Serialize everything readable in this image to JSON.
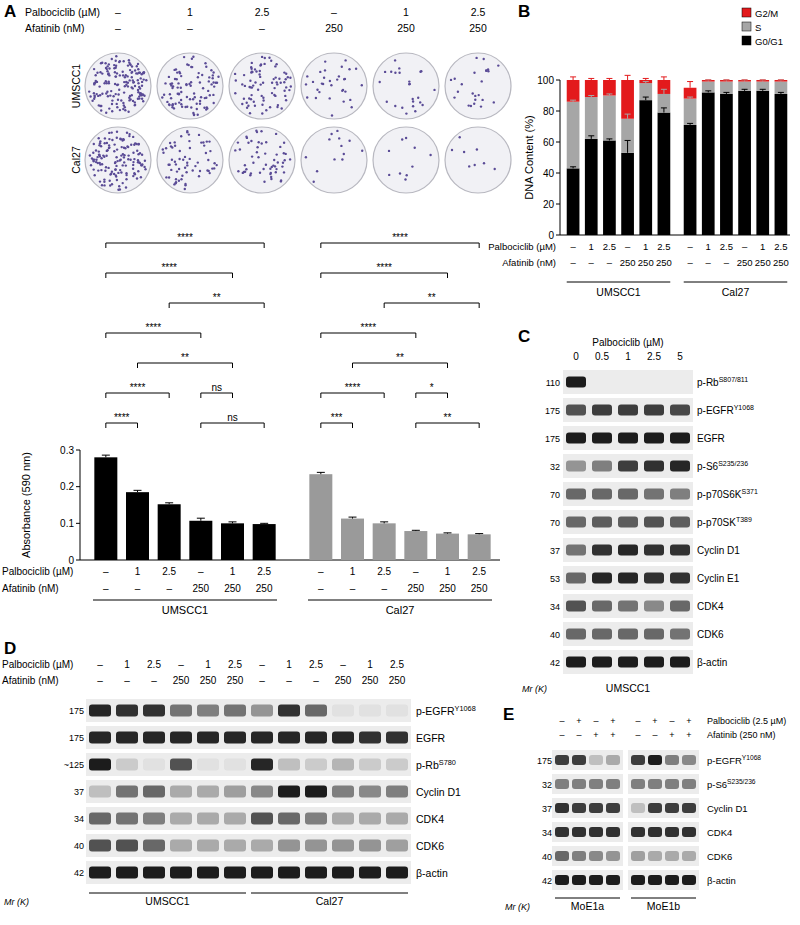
{
  "chart_data": [
    {
      "type": "bar",
      "y_label": "Absorbance (590 nm)",
      "ylim": [
        0,
        0.3
      ],
      "yticks": [
        0,
        0.1,
        0.2,
        0.3
      ],
      "x_rows": [
        {
          "label": "Palbociclib (µM)",
          "values": [
            "–",
            "1",
            "2.5",
            "–",
            "1",
            "2.5"
          ]
        },
        {
          "label": "Afatinib (nM)",
          "values": [
            "–",
            "–",
            "–",
            "250",
            "250",
            "250"
          ]
        }
      ],
      "series": [
        {
          "name": "UMSCC1",
          "color": "#000000",
          "values": [
            0.28,
            0.185,
            0.152,
            0.107,
            0.1,
            0.098
          ],
          "errors": [
            0.006,
            0.005,
            0.004,
            0.007,
            0.004,
            0.002
          ],
          "annotations": [
            {
              "text": "****",
              "from": 0,
              "to": 5
            },
            {
              "text": "****",
              "from": 0,
              "to": 4
            },
            {
              "text": "**",
              "from": 2,
              "to": 5
            },
            {
              "text": "****",
              "from": 0,
              "to": 3
            },
            {
              "text": "**",
              "from": 1,
              "to": 4
            },
            {
              "text": "****",
              "from": 0,
              "to": 2
            },
            {
              "text": "****",
              "from": 0,
              "to": 1
            },
            {
              "text": "ns",
              "from": 3,
              "to": 4
            },
            {
              "text": "ns",
              "from": 3,
              "to": 5
            }
          ]
        },
        {
          "name": "Cal27",
          "color": "#9a9a9a",
          "values": [
            0.234,
            0.113,
            0.1,
            0.079,
            0.072,
            0.07
          ],
          "errors": [
            0.005,
            0.004,
            0.004,
            0.002,
            0.002,
            0.002
          ],
          "annotations": [
            {
              "text": "****",
              "from": 0,
              "to": 5
            },
            {
              "text": "****",
              "from": 0,
              "to": 4
            },
            {
              "text": "**",
              "from": 2,
              "to": 5
            },
            {
              "text": "****",
              "from": 0,
              "to": 3
            },
            {
              "text": "**",
              "from": 1,
              "to": 4
            },
            {
              "text": "****",
              "from": 0,
              "to": 2
            },
            {
              "text": "***",
              "from": 0,
              "to": 1
            },
            {
              "text": "*",
              "from": 3,
              "to": 4
            },
            {
              "text": "**",
              "from": 3,
              "to": 5
            }
          ]
        }
      ]
    },
    {
      "type": "bar",
      "stacked": true,
      "legend": "top-right",
      "y_label": "DNA Content (%)",
      "ylim": [
        0,
        100
      ],
      "yticks": [
        0,
        20,
        40,
        60,
        80,
        100
      ],
      "groups": [
        "UMSCC1",
        "Cal27"
      ],
      "x_rows": [
        {
          "label": "Palbociclib (µM)",
          "values": [
            "–",
            "1",
            "2.5",
            "–",
            "1",
            "2.5"
          ]
        },
        {
          "label": "Afatinib (nM)",
          "values": [
            "–",
            "–",
            "–",
            "250",
            "250",
            "250"
          ]
        }
      ],
      "series": [
        {
          "name": "G0/G1",
          "color": "#000000",
          "values": [
            43,
            62,
            61,
            53,
            87,
            79,
            71,
            92,
            91,
            93,
            93,
            91
          ],
          "errors": [
            1,
            2,
            1,
            8,
            2,
            3,
            1,
            1,
            1,
            1,
            1,
            1
          ]
        },
        {
          "name": "S",
          "color": "#a6a6a6",
          "values": [
            43,
            27,
            29,
            22,
            11,
            12,
            17,
            7,
            8,
            6,
            6,
            8
          ],
          "errors": [
            1,
            1,
            1,
            3,
            1,
            3,
            1,
            1,
            1,
            1,
            1,
            1
          ]
        },
        {
          "name": "G2/M",
          "color": "#e31a1c",
          "values": [
            14,
            11,
            10,
            25,
            2,
            9,
            7,
            1,
            1,
            1,
            1,
            1
          ],
          "errors": [
            2,
            1,
            1,
            3,
            1,
            2,
            4,
            0,
            0,
            0,
            0,
            0
          ]
        }
      ]
    }
  ],
  "panel_labels": [
    "A",
    "B",
    "C",
    "D",
    "E"
  ],
  "colonies": {
    "conditions": [
      {
        "label": "Palbociclib (µM)",
        "values": [
          "–",
          "1",
          "2.5",
          "–",
          "1",
          "2.5"
        ]
      },
      {
        "label": "Afatinib (nM)",
        "values": [
          "–",
          "–",
          "–",
          "250",
          "250",
          "250"
        ]
      }
    ],
    "rows": [
      {
        "name": "UMSCC1",
        "density": [
          1.0,
          0.6,
          0.5,
          0.2,
          0.15,
          0.15
        ]
      },
      {
        "name": "Cal27",
        "density": [
          0.9,
          0.4,
          0.35,
          0.08,
          0.06,
          0.05
        ]
      }
    ]
  },
  "blots": [
    {
      "cell_lines": [
        "UMSCC1"
      ],
      "mr_label": "Mr (K)",
      "conditions": [
        {
          "label": "Palbociclib (µM)",
          "values": [
            "0",
            "0.5",
            "1",
            "2.5",
            "5"
          ]
        }
      ],
      "rows": [
        {
          "mw": "110",
          "label": "p-Rb",
          "sup": "S807/811",
          "bands": [
            [
              0.95,
              0,
              0,
              0,
              0
            ]
          ]
        },
        {
          "mw": "175",
          "label": "p-EGFR",
          "sup": "Y1068",
          "bands": [
            [
              0.7,
              0.8,
              0.8,
              0.8,
              0.75
            ]
          ]
        },
        {
          "mw": "175",
          "label": "EGFR",
          "bands": [
            [
              0.95,
              0.95,
              0.95,
              0.95,
              0.95
            ]
          ]
        },
        {
          "mw": "32",
          "label": "p-S6",
          "sup": "S235/236",
          "bands": [
            [
              0.4,
              0.5,
              0.8,
              0.85,
              0.9
            ]
          ]
        },
        {
          "mw": "70",
          "label": "p-p70S6K",
          "sup": "S371",
          "bands": [
            [
              0.6,
              0.6,
              0.6,
              0.55,
              0.5
            ]
          ]
        },
        {
          "mw": "70",
          "label": "p-p70SK",
          "sup": "T389",
          "bands": [
            [
              0.6,
              0.65,
              0.65,
              0.7,
              0.65
            ]
          ]
        },
        {
          "mw": "37",
          "label": "Cyclin D1",
          "bands": [
            [
              0.55,
              0.85,
              0.9,
              0.85,
              0.85
            ]
          ]
        },
        {
          "mw": "53",
          "label": "Cyclin E1",
          "bands": [
            [
              0.6,
              0.9,
              0.9,
              0.85,
              0.85
            ]
          ]
        },
        {
          "mw": "34",
          "label": "CDK4",
          "bands": [
            [
              0.7,
              0.6,
              0.55,
              0.45,
              0.6
            ]
          ]
        },
        {
          "mw": "40",
          "label": "CDK6",
          "bands": [
            [
              0.6,
              0.6,
              0.6,
              0.6,
              0.55
            ]
          ]
        },
        {
          "mw": "42",
          "label": "β-actin",
          "bands": [
            [
              0.95,
              0.95,
              0.95,
              0.95,
              0.95
            ]
          ]
        }
      ]
    },
    {
      "cell_lines": [
        "UMSCC1",
        "Cal27"
      ],
      "mr_label": "Mr (K)",
      "conditions": [
        {
          "label": "Palbociclib (µM)",
          "values": [
            "–",
            "1",
            "2.5",
            "–",
            "1",
            "2.5"
          ]
        },
        {
          "label": "Afatinib (nM)",
          "values": [
            "–",
            "–",
            "–",
            "250",
            "250",
            "250"
          ]
        }
      ],
      "rows": [
        {
          "mw": "175",
          "label": "p-EGFR",
          "sup": "Y1068",
          "bands": [
            [
              0.9,
              0.85,
              0.85,
              0.55,
              0.5,
              0.55
            ],
            [
              0.4,
              0.85,
              0.6,
              0.05,
              0.05,
              0.05
            ]
          ]
        },
        {
          "mw": "175",
          "label": "EGFR",
          "bands": [
            [
              0.9,
              0.9,
              0.9,
              0.9,
              0.9,
              0.9
            ],
            [
              0.9,
              0.9,
              0.9,
              0.9,
              0.85,
              0.85
            ]
          ]
        },
        {
          "mw": "~125",
          "label": "p-Rb",
          "sup": "S780",
          "bands": [
            [
              0.95,
              0.15,
              0.05,
              0.7,
              0.05,
              0.05
            ],
            [
              0.9,
              0.2,
              0.15,
              0.25,
              0.15,
              0.15
            ]
          ]
        },
        {
          "mw": "37",
          "label": "Cyclin D1",
          "bands": [
            [
              0.2,
              0.55,
              0.6,
              0.3,
              0.3,
              0.35
            ],
            [
              0.45,
              0.95,
              0.95,
              0.5,
              0.45,
              0.5
            ]
          ]
        },
        {
          "mw": "34",
          "label": "CDK4",
          "bands": [
            [
              0.6,
              0.55,
              0.5,
              0.3,
              0.3,
              0.3
            ],
            [
              0.7,
              0.6,
              0.5,
              0.3,
              0.3,
              0.3
            ]
          ]
        },
        {
          "mw": "40",
          "label": "CDK6",
          "bands": [
            [
              0.7,
              0.7,
              0.6,
              0.3,
              0.3,
              0.3
            ],
            [
              0.3,
              0.4,
              0.4,
              0.4,
              0.4,
              0.35
            ]
          ]
        },
        {
          "mw": "42",
          "label": "β-actin",
          "bands": [
            [
              0.95,
              0.95,
              0.95,
              0.95,
              0.95,
              0.95
            ],
            [
              0.95,
              0.95,
              0.95,
              0.95,
              0.95,
              0.95
            ]
          ]
        }
      ]
    },
    {
      "cell_lines": [
        "MoE1a",
        "MoE1b"
      ],
      "mr_label": "Mr (K)",
      "conditions": [
        {
          "label": "Palbociclib (2.5 µM)",
          "values": [
            "–",
            "+",
            "–",
            "+"
          ]
        },
        {
          "label": "Afatinib (250 nM)",
          "values": [
            "–",
            "–",
            "+",
            "+"
          ]
        }
      ],
      "rows": [
        {
          "mw": "175",
          "label": "p-EGFR",
          "sup": "Y1068",
          "bands": [
            [
              0.8,
              0.8,
              0.2,
              0.3
            ],
            [
              0.8,
              0.95,
              0.5,
              0.45
            ]
          ]
        },
        {
          "mw": "32",
          "label": "p-S6",
          "sup": "S235/236",
          "bands": [
            [
              0.5,
              0.5,
              0.5,
              0.5
            ],
            [
              0.5,
              0.5,
              0.5,
              0.5
            ]
          ]
        },
        {
          "mw": "37",
          "label": "Cyclin D1",
          "bands": [
            [
              0.85,
              0.8,
              0.8,
              0.8
            ],
            [
              0.2,
              0.8,
              0.8,
              0.8
            ]
          ]
        },
        {
          "mw": "34",
          "label": "CDK4",
          "bands": [
            [
              0.85,
              0.85,
              0.85,
              0.85
            ],
            [
              0.85,
              0.85,
              0.85,
              0.85
            ]
          ]
        },
        {
          "mw": "40",
          "label": "CDK6",
          "bands": [
            [
              0.6,
              0.5,
              0.45,
              0.4
            ],
            [
              0.35,
              0.3,
              0.3,
              0.3
            ]
          ]
        },
        {
          "mw": "42",
          "label": "β-actin",
          "bands": [
            [
              0.95,
              0.95,
              0.95,
              0.95
            ],
            [
              0.95,
              0.95,
              0.95,
              0.95
            ]
          ]
        }
      ]
    }
  ]
}
